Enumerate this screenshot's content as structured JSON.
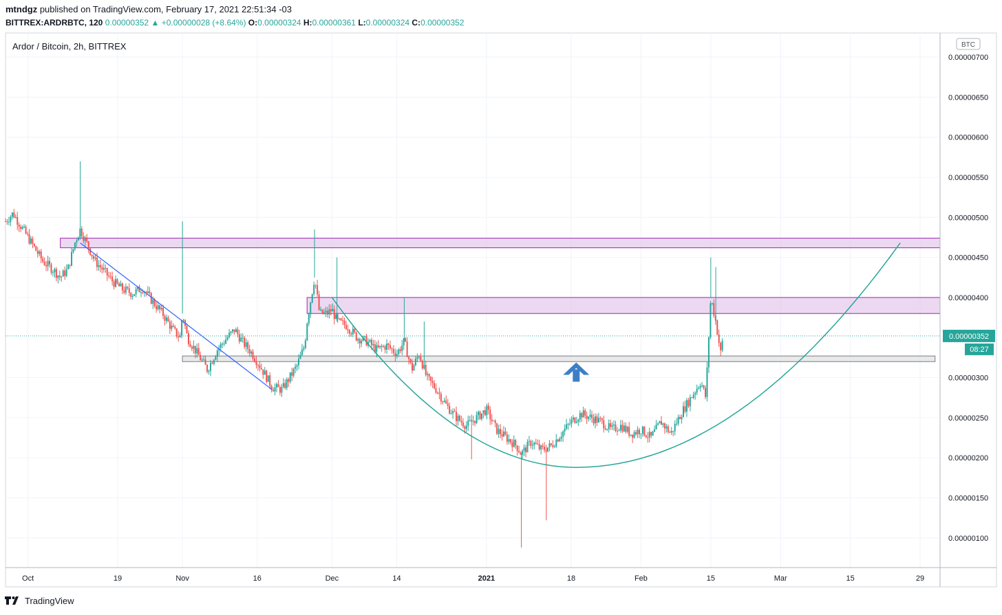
{
  "header": {
    "author": "mtndgz",
    "published_text": " published on TradingView.com, February 17, 2021 22:51:34 -03",
    "symbol": "BITTREX:ARDRBTC, 120",
    "price": "0.00000352",
    "change_arrow": "▲",
    "change": "+0.00000028 (+8.64%)",
    "o_label": "O:",
    "o_value": "0.00000324",
    "h_label": "H:",
    "h_value": "0.00000361",
    "l_label": "L:",
    "l_value": "0.00000324",
    "c_label": "C:",
    "c_value": "0.00000352"
  },
  "footer": {
    "brand": "TradingView"
  },
  "chart_data": {
    "type": "candlestick",
    "title": "Ardor / Bitcoin, 2h, BITTREX",
    "currency_badge": "BTC",
    "last_price_label": "0.00000352",
    "countdown": "08:27",
    "y_ticks": [
      "0.00000700",
      "0.00000650",
      "0.00000600",
      "0.00000550",
      "0.00000500",
      "0.00000450",
      "0.00000400",
      "0.00000352",
      "0.00000300",
      "0.00000250",
      "0.00000200",
      "0.00000150",
      "0.00000100"
    ],
    "y_tick_values": [
      7.0,
      6.5,
      6.0,
      5.5,
      5.0,
      4.5,
      4.0,
      3.52,
      3.0,
      2.5,
      2.0,
      1.5,
      1.0
    ],
    "ylim": [
      0.63,
      7.3
    ],
    "x_ticks": [
      {
        "label": "Oct",
        "day": 0
      },
      {
        "label": "19",
        "day": 18
      },
      {
        "label": "Nov",
        "day": 31
      },
      {
        "label": "16",
        "day": 46
      },
      {
        "label": "Dec",
        "day": 61
      },
      {
        "label": "14",
        "day": 74
      },
      {
        "label": "2021",
        "day": 92
      },
      {
        "label": "18",
        "day": 109
      },
      {
        "label": "Feb",
        "day": 123
      },
      {
        "label": "15",
        "day": 137
      },
      {
        "label": "Mar",
        "day": 151
      },
      {
        "label": "15",
        "day": 165
      },
      {
        "label": "29",
        "day": 179
      }
    ],
    "xlim_days": [
      -4.5,
      183
    ],
    "price_path": [
      [
        -4.5,
        4.95
      ],
      [
        -3,
        5.05
      ],
      [
        -1,
        4.85
      ],
      [
        1,
        4.65
      ],
      [
        3,
        4.45
      ],
      [
        5,
        4.35
      ],
      [
        6.5,
        4.25
      ],
      [
        8,
        4.35
      ],
      [
        9.5,
        4.7
      ],
      [
        10.5,
        4.85
      ],
      [
        12,
        4.65
      ],
      [
        13.5,
        4.45
      ],
      [
        15,
        4.35
      ],
      [
        17,
        4.2
      ],
      [
        19,
        4.1
      ],
      [
        21,
        4.05
      ],
      [
        23,
        4.12
      ],
      [
        25,
        3.95
      ],
      [
        27,
        3.8
      ],
      [
        29,
        3.6
      ],
      [
        30.5,
        3.5
      ],
      [
        31,
        3.8
      ],
      [
        32,
        3.5
      ],
      [
        34,
        3.3
      ],
      [
        36,
        3.1
      ],
      [
        38,
        3.35
      ],
      [
        40,
        3.5
      ],
      [
        41.5,
        3.6
      ],
      [
        43,
        3.45
      ],
      [
        45,
        3.3
      ],
      [
        47,
        3.1
      ],
      [
        49,
        2.88
      ],
      [
        51,
        2.85
      ],
      [
        52,
        2.95
      ],
      [
        54,
        3.15
      ],
      [
        55.5,
        3.4
      ],
      [
        56,
        3.7
      ],
      [
        57.5,
        4.25
      ],
      [
        58.5,
        3.8
      ],
      [
        60,
        3.8
      ],
      [
        61,
        3.85
      ],
      [
        62,
        3.7
      ],
      [
        64,
        3.65
      ],
      [
        66,
        3.5
      ],
      [
        68,
        3.45
      ],
      [
        70,
        3.35
      ],
      [
        72,
        3.4
      ],
      [
        74,
        3.3
      ],
      [
        75.5,
        3.45
      ],
      [
        77,
        3.1
      ],
      [
        78.5,
        3.3
      ],
      [
        80,
        3.0
      ],
      [
        82,
        2.85
      ],
      [
        84,
        2.65
      ],
      [
        86,
        2.5
      ],
      [
        88,
        2.4
      ],
      [
        90,
        2.5
      ],
      [
        92,
        2.6
      ],
      [
        94,
        2.35
      ],
      [
        96,
        2.25
      ],
      [
        98,
        2.15
      ],
      [
        99,
        2.05
      ],
      [
        101,
        2.2
      ],
      [
        103,
        2.1
      ],
      [
        105,
        2.15
      ],
      [
        107,
        2.3
      ],
      [
        109,
        2.45
      ],
      [
        111,
        2.55
      ],
      [
        113,
        2.5
      ],
      [
        115,
        2.45
      ],
      [
        117,
        2.35
      ],
      [
        119,
        2.4
      ],
      [
        121,
        2.3
      ],
      [
        123,
        2.35
      ],
      [
        125,
        2.25
      ],
      [
        127,
        2.45
      ],
      [
        129,
        2.3
      ],
      [
        131,
        2.55
      ],
      [
        133,
        2.75
      ],
      [
        135,
        2.95
      ],
      [
        136,
        2.75
      ],
      [
        136.5,
        3.4
      ],
      [
        137,
        4.0
      ],
      [
        138,
        3.7
      ],
      [
        139,
        3.3
      ],
      [
        139.5,
        3.52
      ]
    ],
    "spikes": [
      {
        "day": 10.5,
        "high": 5.7
      },
      {
        "day": 31,
        "high": 4.95
      },
      {
        "day": 57.5,
        "high": 4.85
      },
      {
        "day": 62,
        "high": 4.5
      },
      {
        "day": 69,
        "high": 2.7,
        "low": 2.7
      },
      {
        "day": 75.5,
        "high": 4.0
      },
      {
        "day": 79.5,
        "high": 3.7
      },
      {
        "day": 89,
        "low": 1.98
      },
      {
        "day": 99,
        "low": 0.88
      },
      {
        "day": 104,
        "low": 1.22
      },
      {
        "day": 137,
        "high": 4.5
      },
      {
        "day": 138,
        "high": 4.38
      }
    ],
    "overlays": {
      "resistance_zone_upper": {
        "day_start": 6.5,
        "day_end": 183,
        "price_low": 4.62,
        "price_high": 4.74
      },
      "resistance_zone_middle": {
        "day_start": 56,
        "day_end": 183,
        "price_low": 3.8,
        "price_high": 4.0
      },
      "support_zone": {
        "day_start": 31,
        "day_end": 182,
        "price_low": 3.2,
        "price_high": 3.27
      },
      "downtrend_line": [
        [
          10.5,
          4.68
        ],
        [
          49,
          2.85
        ]
      ],
      "cup_curve": {
        "start_day": 61,
        "start_price": 4.0,
        "vertex_day": 110,
        "vertex_price": 1.88,
        "end_day": 175,
        "end_price": 4.68
      },
      "up_arrow": {
        "day": 110,
        "price": 3.0
      }
    }
  }
}
